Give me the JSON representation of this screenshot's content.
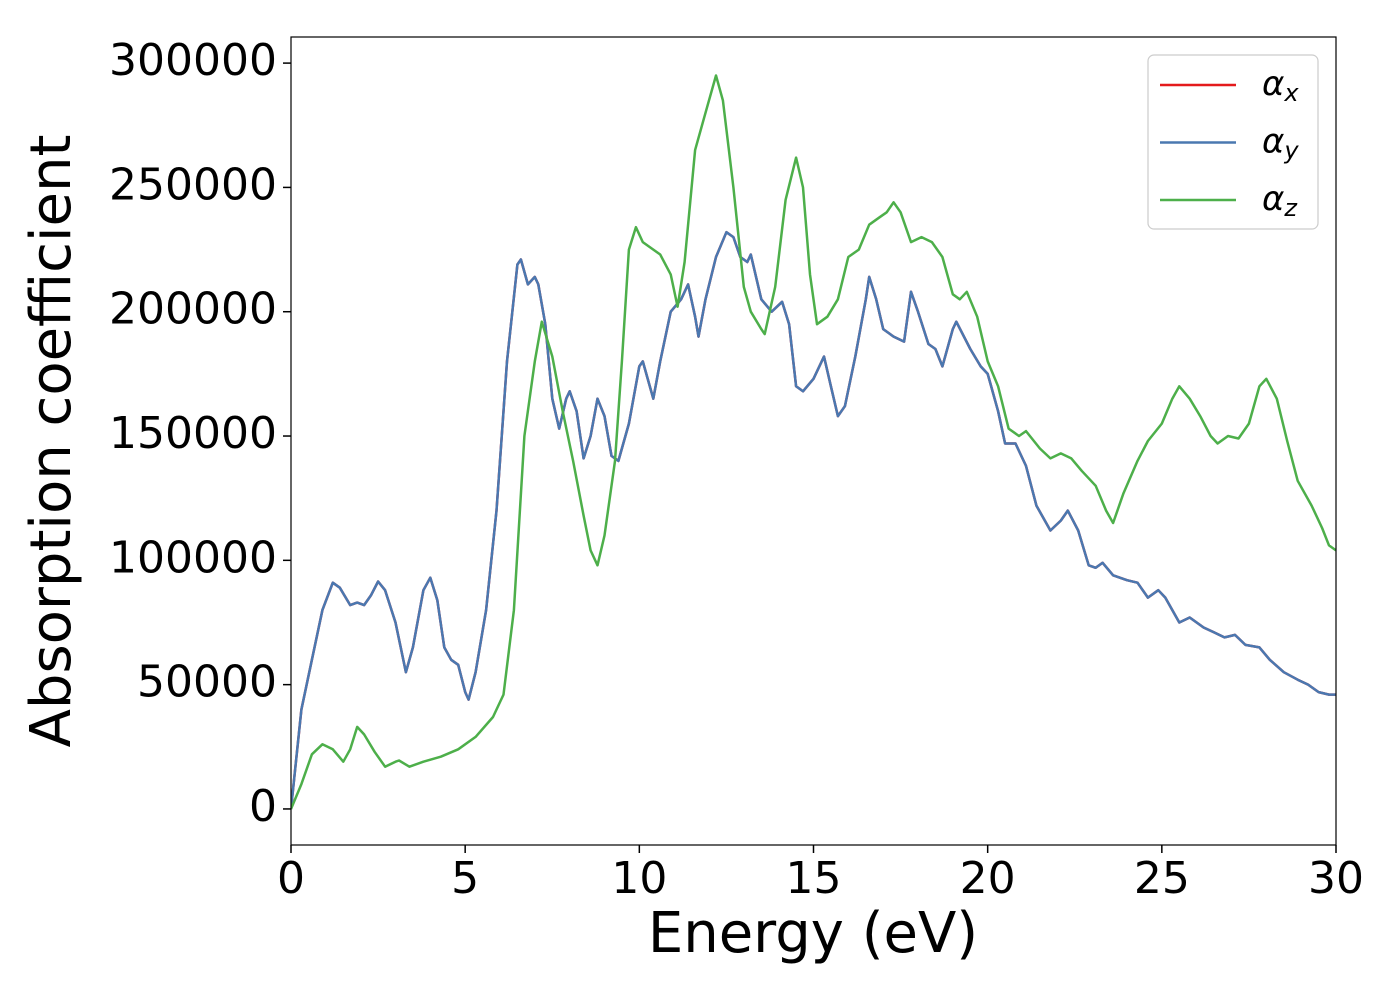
{
  "chart_data": {
    "type": "line",
    "xlabel": "Energy (eV)",
    "ylabel": "Absorption coefficient",
    "xlim": [
      0,
      30
    ],
    "ylim": [
      -14500,
      310500
    ],
    "xticks": [
      0,
      5,
      10,
      15,
      20,
      25,
      30
    ],
    "yticks": [
      0,
      50000,
      100000,
      150000,
      200000,
      250000,
      300000
    ],
    "legend": "upper right",
    "grid": false,
    "series": [
      {
        "name": "αx",
        "color": "#e41a1c",
        "x": [
          0,
          0.3,
          0.6,
          0.9,
          1.2,
          1.4,
          1.7,
          1.9,
          2.1,
          2.3,
          2.5,
          2.7,
          3.0,
          3.3,
          3.5,
          3.8,
          4.0,
          4.2,
          4.4,
          4.6,
          4.8,
          5.0,
          5.1,
          5.3,
          5.6,
          5.9,
          6.2,
          6.5,
          6.6,
          6.8,
          7.0,
          7.1,
          7.3,
          7.5,
          7.7,
          7.9,
          8.0,
          8.2,
          8.4,
          8.6,
          8.8,
          9.0,
          9.2,
          9.4,
          9.7,
          10.0,
          10.1,
          10.4,
          10.6,
          10.9,
          11.2,
          11.4,
          11.6,
          11.7,
          11.9,
          12.2,
          12.5,
          12.7,
          12.9,
          13.1,
          13.2,
          13.5,
          13.8,
          14.1,
          14.3,
          14.5,
          14.7,
          15.0,
          15.3,
          15.5,
          15.7,
          15.9,
          16.2,
          16.5,
          16.6,
          16.8,
          17.0,
          17.3,
          17.6,
          17.8,
          18.0,
          18.3,
          18.5,
          18.7,
          19.0,
          19.1,
          19.5,
          19.8,
          20.0,
          20.3,
          20.5,
          20.8,
          21.1,
          21.4,
          21.8,
          22.1,
          22.3,
          22.6,
          22.9,
          23.1,
          23.3,
          23.6,
          24.0,
          24.3,
          24.6,
          24.9,
          25.1,
          25.5,
          25.8,
          26.2,
          26.5,
          26.8,
          27.1,
          27.4,
          27.8,
          28.1,
          28.5,
          28.9,
          29.2,
          29.5,
          29.8,
          30.0
        ],
        "values": [
          0,
          40000,
          60000,
          80000,
          91000,
          89000,
          82000,
          83000,
          82000,
          86000,
          91500,
          88000,
          75000,
          55000,
          65000,
          88000,
          93000,
          84000,
          65000,
          60000,
          58000,
          47000,
          44000,
          55000,
          80000,
          120000,
          180000,
          219000,
          221000,
          211000,
          214000,
          211000,
          195000,
          165000,
          153000,
          165000,
          168000,
          160000,
          141000,
          150000,
          165000,
          158000,
          142000,
          140000,
          155000,
          178000,
          180000,
          165000,
          180000,
          200000,
          205000,
          211000,
          198000,
          190000,
          205000,
          222000,
          232000,
          230000,
          222000,
          220000,
          223000,
          205000,
          200000,
          204000,
          195000,
          170000,
          168000,
          173000,
          182000,
          170000,
          158000,
          162000,
          182000,
          205000,
          214000,
          205000,
          193000,
          190000,
          188000,
          208000,
          200000,
          187000,
          185000,
          178000,
          193000,
          196000,
          185000,
          178000,
          175000,
          160000,
          147000,
          147000,
          138000,
          122000,
          112000,
          116000,
          120000,
          112000,
          98000,
          97000,
          99000,
          94000,
          92000,
          91000,
          85000,
          88000,
          85000,
          75000,
          77000,
          73000,
          71000,
          69000,
          70000,
          66000,
          65000,
          60000,
          55000,
          52000,
          50000,
          47000,
          46000,
          46000
        ]
      },
      {
        "name": "αy",
        "color": "#4a78b0",
        "x": [
          0,
          0.3,
          0.6,
          0.9,
          1.2,
          1.4,
          1.7,
          1.9,
          2.1,
          2.3,
          2.5,
          2.7,
          3.0,
          3.3,
          3.5,
          3.8,
          4.0,
          4.2,
          4.4,
          4.6,
          4.8,
          5.0,
          5.1,
          5.3,
          5.6,
          5.9,
          6.2,
          6.5,
          6.6,
          6.8,
          7.0,
          7.1,
          7.3,
          7.5,
          7.7,
          7.9,
          8.0,
          8.2,
          8.4,
          8.6,
          8.8,
          9.0,
          9.2,
          9.4,
          9.7,
          10.0,
          10.1,
          10.4,
          10.6,
          10.9,
          11.2,
          11.4,
          11.6,
          11.7,
          11.9,
          12.2,
          12.5,
          12.7,
          12.9,
          13.1,
          13.2,
          13.5,
          13.8,
          14.1,
          14.3,
          14.5,
          14.7,
          15.0,
          15.3,
          15.5,
          15.7,
          15.9,
          16.2,
          16.5,
          16.6,
          16.8,
          17.0,
          17.3,
          17.6,
          17.8,
          18.0,
          18.3,
          18.5,
          18.7,
          19.0,
          19.1,
          19.5,
          19.8,
          20.0,
          20.3,
          20.5,
          20.8,
          21.1,
          21.4,
          21.8,
          22.1,
          22.3,
          22.6,
          22.9,
          23.1,
          23.3,
          23.6,
          24.0,
          24.3,
          24.6,
          24.9,
          25.1,
          25.5,
          25.8,
          26.2,
          26.5,
          26.8,
          27.1,
          27.4,
          27.8,
          28.1,
          28.5,
          28.9,
          29.2,
          29.5,
          29.8,
          30.0
        ],
        "values": [
          0,
          40000,
          60000,
          80000,
          91000,
          89000,
          82000,
          83000,
          82000,
          86000,
          91500,
          88000,
          75000,
          55000,
          65000,
          88000,
          93000,
          84000,
          65000,
          60000,
          58000,
          47000,
          44000,
          55000,
          80000,
          120000,
          180000,
          219000,
          221000,
          211000,
          214000,
          211000,
          195000,
          165000,
          153000,
          165000,
          168000,
          160000,
          141000,
          150000,
          165000,
          158000,
          142000,
          140000,
          155000,
          178000,
          180000,
          165000,
          180000,
          200000,
          205000,
          211000,
          198000,
          190000,
          205000,
          222000,
          232000,
          230000,
          222000,
          220000,
          223000,
          205000,
          200000,
          204000,
          195000,
          170000,
          168000,
          173000,
          182000,
          170000,
          158000,
          162000,
          182000,
          205000,
          214000,
          205000,
          193000,
          190000,
          188000,
          208000,
          200000,
          187000,
          185000,
          178000,
          193000,
          196000,
          185000,
          178000,
          175000,
          160000,
          147000,
          147000,
          138000,
          122000,
          112000,
          116000,
          120000,
          112000,
          98000,
          97000,
          99000,
          94000,
          92000,
          91000,
          85000,
          88000,
          85000,
          75000,
          77000,
          73000,
          71000,
          69000,
          70000,
          66000,
          65000,
          60000,
          55000,
          52000,
          50000,
          47000,
          46000,
          46000
        ]
      },
      {
        "name": "αz",
        "color": "#4daf4a",
        "x": [
          0,
          0.3,
          0.6,
          0.9,
          1.2,
          1.5,
          1.7,
          1.9,
          2.1,
          2.4,
          2.7,
          3.0,
          3.1,
          3.4,
          3.8,
          4.3,
          4.8,
          5.3,
          5.8,
          6.1,
          6.4,
          6.7,
          7.0,
          7.2,
          7.5,
          7.8,
          8.1,
          8.4,
          8.6,
          8.8,
          9.0,
          9.3,
          9.5,
          9.7,
          9.9,
          10.1,
          10.3,
          10.6,
          10.9,
          11.1,
          11.3,
          11.6,
          11.9,
          12.2,
          12.4,
          12.7,
          13.0,
          13.2,
          13.5,
          13.6,
          13.9,
          14.2,
          14.5,
          14.7,
          14.9,
          15.1,
          15.4,
          15.7,
          16.0,
          16.3,
          16.6,
          16.9,
          17.1,
          17.3,
          17.5,
          17.8,
          18.1,
          18.4,
          18.7,
          19.0,
          19.2,
          19.4,
          19.7,
          20.0,
          20.3,
          20.6,
          20.9,
          21.1,
          21.5,
          21.8,
          22.1,
          22.4,
          22.7,
          23.1,
          23.4,
          23.6,
          23.9,
          24.3,
          24.6,
          25.0,
          25.3,
          25.5,
          25.8,
          26.1,
          26.4,
          26.6,
          26.9,
          27.2,
          27.5,
          27.8,
          28.0,
          28.3,
          28.6,
          28.9,
          29.3,
          29.6,
          29.8,
          30.0
        ],
        "values": [
          0,
          10000,
          22000,
          26000,
          24000,
          19000,
          24000,
          33000,
          30000,
          23000,
          17000,
          19000,
          19500,
          17000,
          19000,
          21000,
          24000,
          29000,
          37000,
          46000,
          80000,
          150000,
          180000,
          196000,
          182000,
          160000,
          140000,
          118000,
          104000,
          98000,
          110000,
          140000,
          180000,
          225000,
          234000,
          228000,
          226000,
          223000,
          215000,
          202000,
          220000,
          265000,
          280000,
          295000,
          285000,
          250000,
          210000,
          200000,
          193000,
          191000,
          210000,
          245000,
          262000,
          250000,
          215000,
          195000,
          198000,
          205000,
          222000,
          225000,
          235000,
          238000,
          240000,
          244000,
          240000,
          228000,
          230000,
          228000,
          222000,
          207000,
          205000,
          208000,
          198000,
          180000,
          170000,
          153000,
          150000,
          152000,
          145000,
          141000,
          143000,
          141000,
          136000,
          130000,
          120000,
          115000,
          127000,
          140000,
          148000,
          155000,
          165000,
          170000,
          165000,
          158000,
          150000,
          147000,
          150000,
          149000,
          155000,
          170000,
          173000,
          165000,
          148000,
          132000,
          122000,
          113000,
          106000,
          104000
        ]
      }
    ]
  }
}
